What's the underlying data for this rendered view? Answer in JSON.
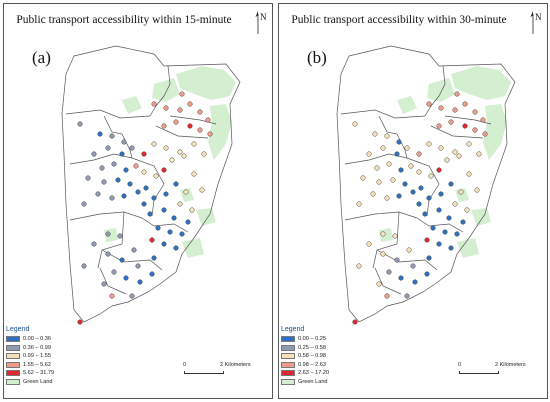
{
  "panels": [
    {
      "title": "Public transport accessibility within 15-minute",
      "label": "(a)",
      "north": "N",
      "legend": {
        "title": "Legend",
        "items": [
          {
            "label": "0.00 – 0.36",
            "color": "#2e6fc4"
          },
          {
            "label": "0.36 – 0.99",
            "color": "#8e9ab0"
          },
          {
            "label": "0.99 – 1.55",
            "color": "#f5e0b8"
          },
          {
            "label": "1.55 – 5.62",
            "color": "#ef9b86"
          },
          {
            "label": "5.62 – 31.79",
            "color": "#e2262f"
          },
          {
            "label": "Green Land",
            "color": "#d4efd0"
          }
        ]
      },
      "scale": {
        "zero": "0",
        "label": "2 Kilometers"
      }
    },
    {
      "title": "Public transport accessibility within 30-minute",
      "label": "(b)",
      "north": "N",
      "legend": {
        "title": "Legend",
        "items": [
          {
            "label": "0.00 – 0.25",
            "color": "#2e6fc4"
          },
          {
            "label": "0.25 – 0.58",
            "color": "#8e9ab0"
          },
          {
            "label": "0.58 – 0.98",
            "color": "#f5e0b8"
          },
          {
            "label": "0.98 – 2.63",
            "color": "#ef9b86"
          },
          {
            "label": "2.63 – 17.20",
            "color": "#e2262f"
          },
          {
            "label": "Green Land",
            "color": "#d4efd0"
          }
        ]
      },
      "scale": {
        "zero": "0",
        "label": "2 Kilometers"
      }
    }
  ]
}
